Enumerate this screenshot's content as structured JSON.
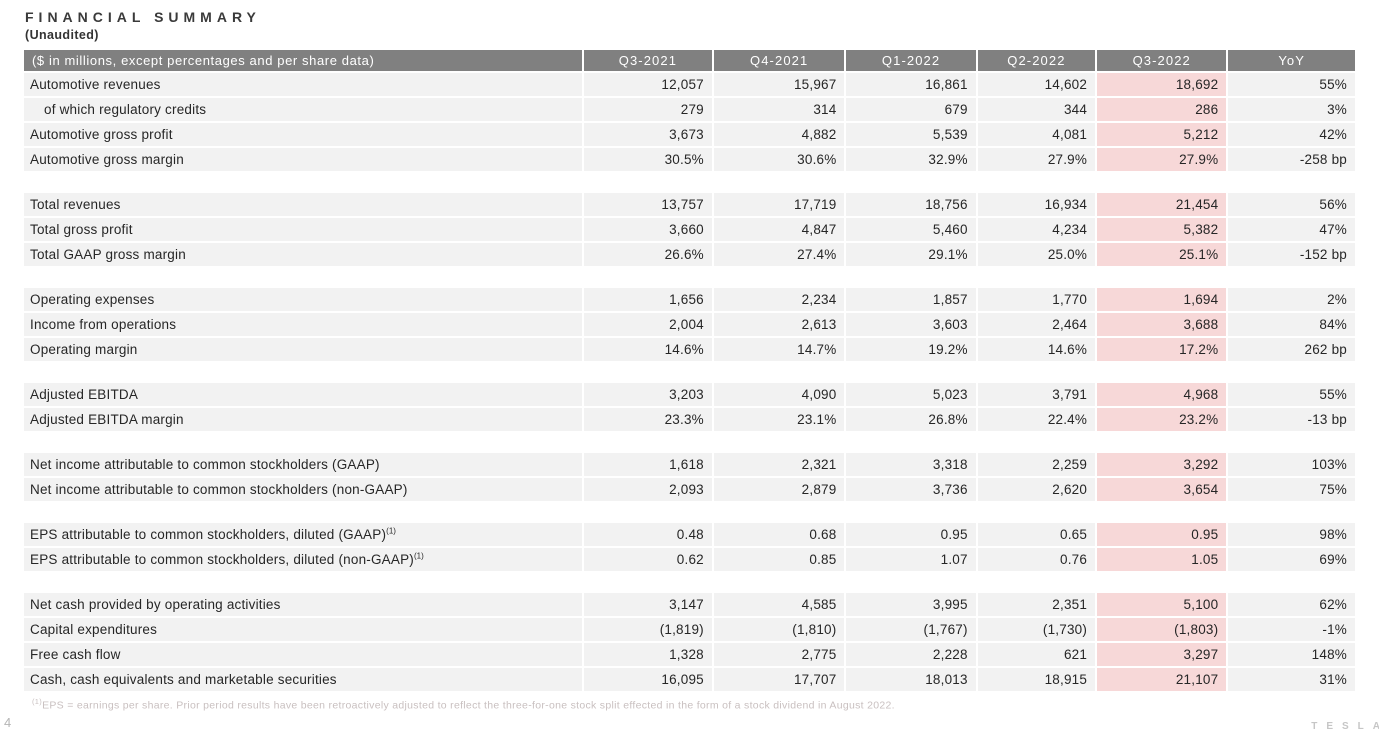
{
  "page": {
    "title": "FINANCIAL SUMMARY",
    "subtitle": "(Unaudited)",
    "page_number": "4",
    "brand": "TESLA",
    "footnote_sup": "(1)",
    "footnote": "EPS = earnings per share. Prior period results have been retroactively adjusted to reflect the three-for-one stock split effected in the form of a stock dividend in August 2022."
  },
  "colors": {
    "header_bg": "#808080",
    "header_text": "#ffffff",
    "row_bg": "#f2f2f2",
    "highlight_bg": "#f7d8d8",
    "body_text": "#262626",
    "footnote_text": "#c9c0c0"
  },
  "table": {
    "highlight_column": "Q3-2022",
    "highlight_value_index": 4,
    "header": [
      "($ in millions, except percentages and per share data)",
      "Q3-2021",
      "Q4-2021",
      "Q1-2022",
      "Q2-2022",
      "Q3-2022",
      "YoY"
    ],
    "sections": [
      {
        "rows": [
          {
            "label": "Automotive revenues",
            "indent": false,
            "sup": "",
            "values": [
              "12,057",
              "15,967",
              "16,861",
              "14,602",
              "18,692",
              "55%"
            ]
          },
          {
            "label": "of which regulatory credits",
            "indent": true,
            "sup": "",
            "values": [
              "279",
              "314",
              "679",
              "344",
              "286",
              "3%"
            ]
          },
          {
            "label": "Automotive gross profit",
            "indent": false,
            "sup": "",
            "values": [
              "3,673",
              "4,882",
              "5,539",
              "4,081",
              "5,212",
              "42%"
            ]
          },
          {
            "label": "Automotive gross margin",
            "indent": false,
            "sup": "",
            "values": [
              "30.5%",
              "30.6%",
              "32.9%",
              "27.9%",
              "27.9%",
              "-258 bp"
            ]
          }
        ]
      },
      {
        "rows": [
          {
            "label": "Total revenues",
            "indent": false,
            "sup": "",
            "values": [
              "13,757",
              "17,719",
              "18,756",
              "16,934",
              "21,454",
              "56%"
            ]
          },
          {
            "label": "Total gross profit",
            "indent": false,
            "sup": "",
            "values": [
              "3,660",
              "4,847",
              "5,460",
              "4,234",
              "5,382",
              "47%"
            ]
          },
          {
            "label": "Total GAAP gross margin",
            "indent": false,
            "sup": "",
            "values": [
              "26.6%",
              "27.4%",
              "29.1%",
              "25.0%",
              "25.1%",
              "-152 bp"
            ]
          }
        ]
      },
      {
        "rows": [
          {
            "label": "Operating expenses",
            "indent": false,
            "sup": "",
            "values": [
              "1,656",
              "2,234",
              "1,857",
              "1,770",
              "1,694",
              "2%"
            ]
          },
          {
            "label": "Income from operations",
            "indent": false,
            "sup": "",
            "values": [
              "2,004",
              "2,613",
              "3,603",
              "2,464",
              "3,688",
              "84%"
            ]
          },
          {
            "label": "Operating margin",
            "indent": false,
            "sup": "",
            "values": [
              "14.6%",
              "14.7%",
              "19.2%",
              "14.6%",
              "17.2%",
              "262 bp"
            ]
          }
        ]
      },
      {
        "rows": [
          {
            "label": "Adjusted EBITDA",
            "indent": false,
            "sup": "",
            "values": [
              "3,203",
              "4,090",
              "5,023",
              "3,791",
              "4,968",
              "55%"
            ]
          },
          {
            "label": "Adjusted EBITDA margin",
            "indent": false,
            "sup": "",
            "values": [
              "23.3%",
              "23.1%",
              "26.8%",
              "22.4%",
              "23.2%",
              "-13 bp"
            ]
          }
        ]
      },
      {
        "rows": [
          {
            "label": "Net income attributable to common stockholders (GAAP)",
            "indent": false,
            "sup": "",
            "values": [
              "1,618",
              "2,321",
              "3,318",
              "2,259",
              "3,292",
              "103%"
            ]
          },
          {
            "label": "Net income attributable to common stockholders (non-GAAP)",
            "indent": false,
            "sup": "",
            "values": [
              "2,093",
              "2,879",
              "3,736",
              "2,620",
              "3,654",
              "75%"
            ]
          }
        ]
      },
      {
        "rows": [
          {
            "label": "EPS attributable to common stockholders, diluted (GAAP)",
            "indent": false,
            "sup": "(1)",
            "values": [
              "0.48",
              "0.68",
              "0.95",
              "0.65",
              "0.95",
              "98%"
            ]
          },
          {
            "label": "EPS attributable to common stockholders, diluted (non-GAAP)",
            "indent": false,
            "sup": "(1)",
            "values": [
              "0.62",
              "0.85",
              "1.07",
              "0.76",
              "1.05",
              "69%"
            ]
          }
        ]
      },
      {
        "rows": [
          {
            "label": "Net cash provided by operating activities",
            "indent": false,
            "sup": "",
            "values": [
              "3,147",
              "4,585",
              "3,995",
              "2,351",
              "5,100",
              "62%"
            ]
          },
          {
            "label": "Capital expenditures",
            "indent": false,
            "sup": "",
            "values": [
              "(1,819)",
              "(1,810)",
              "(1,767)",
              "(1,730)",
              "(1,803)",
              "-1%"
            ]
          },
          {
            "label": "Free cash flow",
            "indent": false,
            "sup": "",
            "values": [
              "1,328",
              "2,775",
              "2,228",
              "621",
              "3,297",
              "148%"
            ]
          },
          {
            "label": "Cash, cash equivalents and marketable securities",
            "indent": false,
            "sup": "",
            "values": [
              "16,095",
              "17,707",
              "18,013",
              "18,915",
              "21,107",
              "31%"
            ]
          }
        ]
      }
    ]
  }
}
